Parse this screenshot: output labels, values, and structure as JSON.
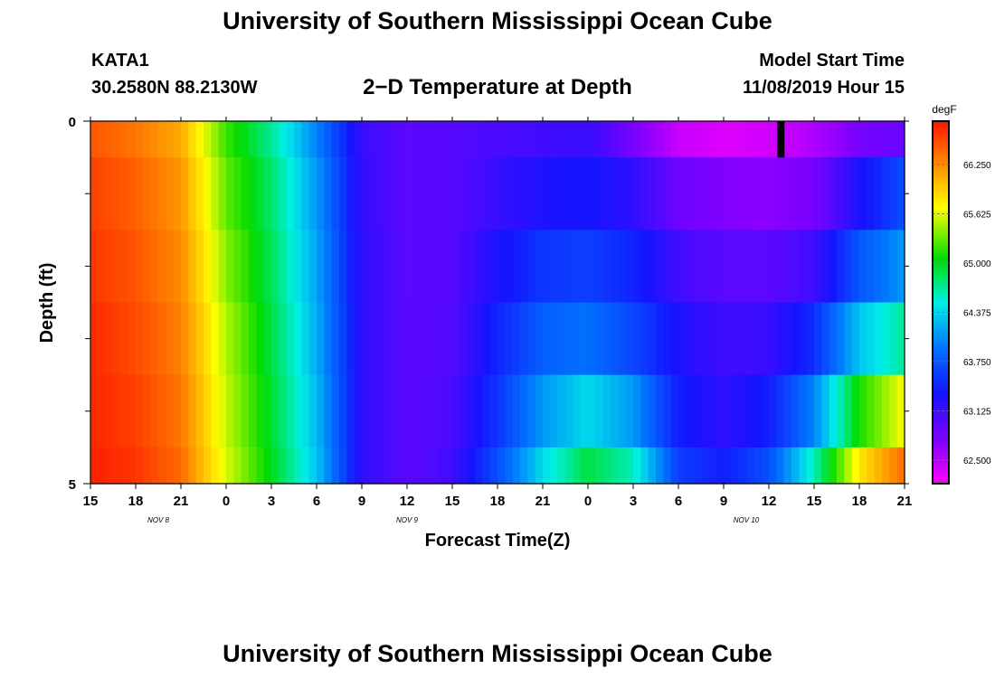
{
  "header": {
    "title": "University of Southern Mississippi Ocean Cube",
    "station": "KATA1",
    "coords": "30.2580N 88.2130W",
    "plot_title": "2−D Temperature at Depth",
    "model_start_label": "Model Start Time",
    "model_start_time": "11/08/2019 Hour 15"
  },
  "footer": {
    "title": "University of Southern Mississippi Ocean Cube"
  },
  "chart_data": {
    "type": "heatmap",
    "title": "2−D Temperature at Depth",
    "xlabel": "Forecast Time(Z)",
    "ylabel": "Depth (ft)",
    "x_ticks": [
      "15",
      "18",
      "21",
      "0",
      "3",
      "6",
      "9",
      "12",
      "15",
      "18",
      "21",
      "0",
      "3",
      "6",
      "9",
      "12",
      "15",
      "18",
      "21"
    ],
    "date_labels": [
      {
        "label": "NOV  8",
        "tick_index": 1.5
      },
      {
        "label": "NOV  9",
        "tick_index": 7
      },
      {
        "label": "NOV  10",
        "tick_index": 14.5
      }
    ],
    "y_ticks": [
      "0",
      "5"
    ],
    "ylim": [
      0,
      5
    ],
    "colorbar": {
      "unit": "degF",
      "labels": [
        "62.500",
        "63.125",
        "63.750",
        "64.375",
        "65.000",
        "65.625",
        "66.250"
      ],
      "range": [
        62.2,
        66.8
      ]
    },
    "hours": [
      0,
      3,
      6,
      9,
      12,
      15,
      18,
      21,
      24,
      27,
      30,
      33,
      36,
      39,
      42,
      45,
      48,
      51,
      54
    ],
    "rows": [
      {
        "depth_bin": [
          0.0,
          0.5
        ],
        "temps": [
          66.5,
          66.35,
          66.1,
          65.2,
          64.7,
          64.0,
          63.15,
          62.95,
          62.98,
          63.05,
          63.1,
          63.15,
          62.8,
          62.45,
          62.35,
          62.4,
          62.55,
          62.8,
          62.9
        ]
      },
      {
        "depth_bin": [
          0.5,
          1.5
        ],
        "temps": [
          66.6,
          66.45,
          66.2,
          65.3,
          64.8,
          64.1,
          63.18,
          62.95,
          62.98,
          63.15,
          63.3,
          63.35,
          63.2,
          62.85,
          62.75,
          62.7,
          62.8,
          63.3,
          63.7
        ]
      },
      {
        "depth_bin": [
          1.5,
          2.5
        ],
        "temps": [
          66.65,
          66.5,
          66.25,
          65.4,
          64.85,
          64.15,
          63.2,
          62.95,
          62.98,
          63.3,
          63.55,
          63.6,
          63.45,
          63.1,
          62.95,
          62.95,
          63.1,
          63.75,
          64.1
        ]
      },
      {
        "depth_bin": [
          2.5,
          3.5
        ],
        "temps": [
          66.7,
          66.55,
          66.3,
          65.5,
          64.9,
          64.2,
          63.2,
          62.95,
          63.0,
          63.45,
          63.8,
          63.9,
          63.65,
          63.3,
          63.1,
          63.15,
          63.5,
          64.3,
          64.7
        ]
      },
      {
        "depth_bin": [
          3.5,
          4.5
        ],
        "temps": [
          66.72,
          66.6,
          66.35,
          65.55,
          64.95,
          64.25,
          63.2,
          62.95,
          63.05,
          63.55,
          64.1,
          64.4,
          64.1,
          63.4,
          63.2,
          63.4,
          64.0,
          65.1,
          65.7
        ]
      },
      {
        "depth_bin": [
          4.5,
          5.0
        ],
        "temps": [
          66.75,
          66.65,
          66.4,
          65.6,
          65.0,
          64.3,
          63.2,
          62.95,
          63.1,
          63.7,
          64.4,
          64.9,
          64.6,
          63.6,
          63.4,
          63.7,
          64.6,
          65.8,
          66.4
        ]
      }
    ],
    "marker_hour": 45.8
  }
}
